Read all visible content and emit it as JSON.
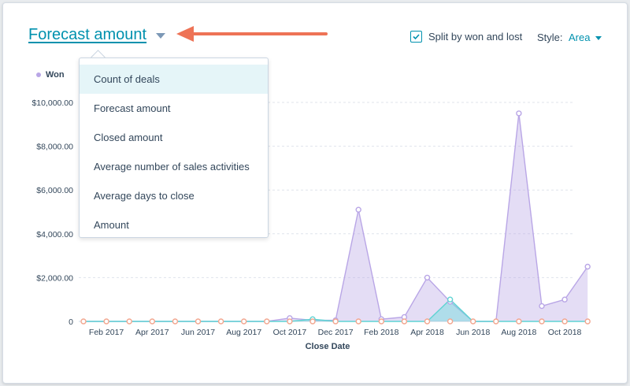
{
  "header": {
    "title": "Forecast amount",
    "split_label": "Split by won and lost",
    "split_checked": true,
    "style_label": "Style:",
    "style_value": "Area"
  },
  "legend": {
    "won_label": "Won"
  },
  "dropdown": {
    "items": [
      {
        "label": "Count of deals",
        "active": true
      },
      {
        "label": "Forecast amount"
      },
      {
        "label": "Closed amount"
      },
      {
        "label": "Average number of sales activities"
      },
      {
        "label": "Average days to close"
      },
      {
        "label": "Amount"
      }
    ]
  },
  "colors": {
    "accent": "#0091ae",
    "won": "#b9a6e6",
    "teal": "#6fdede",
    "lost": "#f2a68f",
    "arrow": "#ee7356"
  },
  "chart_data": {
    "type": "area",
    "xlabel": "Close Date",
    "ylabel": "",
    "ylim": [
      0,
      10000
    ],
    "y_ticks": [
      "0",
      "$2,000.00",
      "$4,000.00",
      "$6,000.00",
      "$8,000.00",
      "$10,000.00"
    ],
    "x_tick_labels": [
      "Feb 2017",
      "Apr 2017",
      "Jun 2017",
      "Aug 2017",
      "Oct 2017",
      "Dec 2017",
      "Feb 2018",
      "Apr 2018",
      "Jun 2018",
      "Aug 2018",
      "Oct 2018"
    ],
    "categories": [
      "Jan 2017",
      "Feb 2017",
      "Mar 2017",
      "Apr 2017",
      "May 2017",
      "Jun 2017",
      "Jul 2017",
      "Aug 2017",
      "Sep 2017",
      "Oct 2017",
      "Nov 2017",
      "Dec 2017",
      "Jan 2018",
      "Feb 2018",
      "Mar 2018",
      "Apr 2018",
      "May 2018",
      "Jun 2018",
      "Jul 2018",
      "Aug 2018",
      "Sep 2018",
      "Oct 2018",
      "Nov 2018"
    ],
    "series": [
      {
        "name": "Won",
        "values": [
          0,
          0,
          0,
          0,
          0,
          0,
          0,
          0,
          0,
          150,
          50,
          50,
          5100,
          100,
          200,
          2000,
          900,
          0,
          0,
          9500,
          700,
          1000,
          2500
        ]
      },
      {
        "values": [
          0,
          0,
          0,
          0,
          0,
          0,
          0,
          0,
          0,
          0,
          100,
          0,
          0,
          0,
          0,
          0,
          1000,
          0,
          0,
          0,
          0,
          0,
          0
        ]
      },
      {
        "values": [
          0,
          0,
          0,
          0,
          0,
          0,
          0,
          0,
          0,
          0,
          0,
          0,
          0,
          0,
          0,
          0,
          0,
          0,
          0,
          0,
          0,
          0,
          0
        ]
      }
    ]
  }
}
